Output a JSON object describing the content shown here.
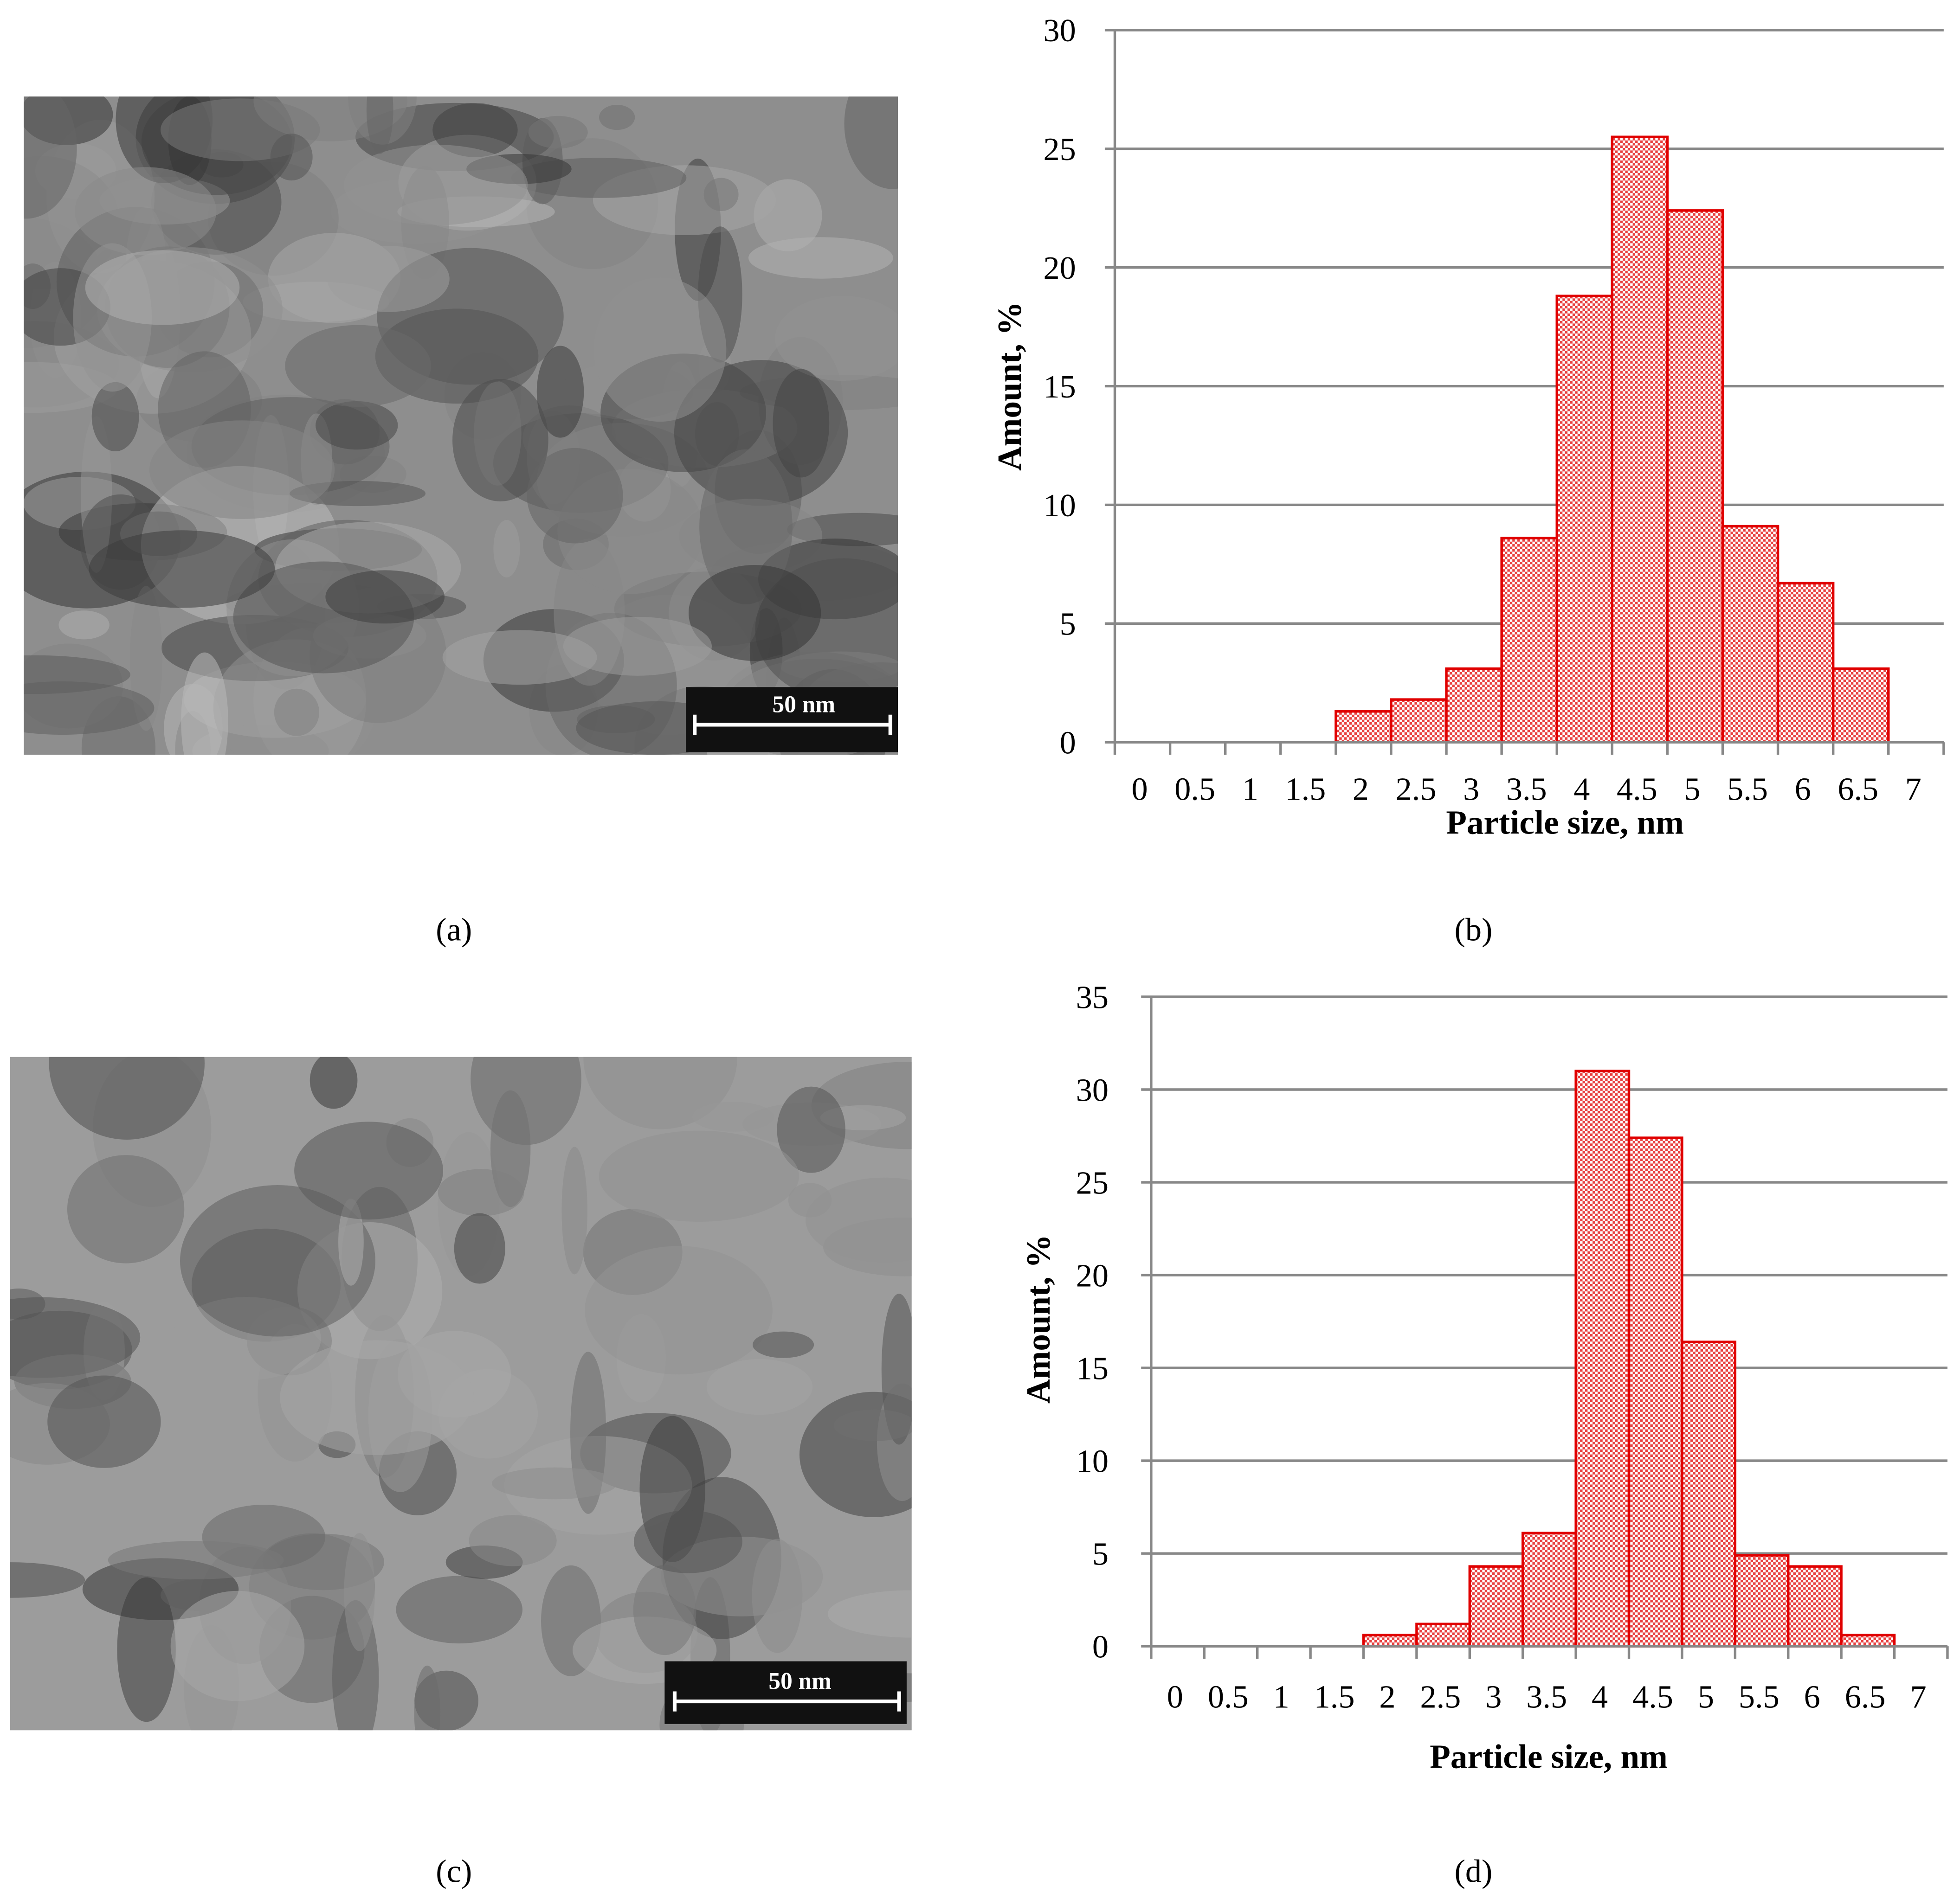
{
  "panels": [
    {
      "label": "(a)",
      "scale_bar": "50 nm"
    },
    {
      "label": "(b)"
    },
    {
      "label": "(c)",
      "scale_bar": "50 nm"
    },
    {
      "label": "(d)"
    }
  ],
  "chart_data": [
    {
      "type": "bar",
      "xlabel": "Particle size, nm",
      "ylabel": "Amount, %",
      "categories": [
        "0",
        "0.5",
        "1",
        "1.5",
        "2",
        "2.5",
        "3",
        "3.5",
        "4",
        "4.5",
        "5",
        "5.5",
        "6",
        "6.5",
        "7"
      ],
      "values": [
        0,
        0,
        0,
        0,
        1.3,
        1.8,
        3.1,
        8.6,
        18.8,
        25.5,
        22.4,
        9.1,
        6.7,
        3.1,
        0
      ],
      "color": "#e00000",
      "ylim": [
        0,
        30
      ],
      "yticks": [
        0,
        5,
        10,
        15,
        20,
        25,
        30
      ],
      "grid": true
    },
    {
      "type": "bar",
      "xlabel": "Particle size, nm",
      "ylabel": "Amount, %",
      "categories": [
        "0",
        "0.5",
        "1",
        "1.5",
        "2",
        "2.5",
        "3",
        "3.5",
        "4",
        "4.5",
        "5",
        "5.5",
        "6",
        "6.5",
        "7"
      ],
      "values": [
        0,
        0,
        0,
        0,
        0.6,
        1.2,
        4.3,
        6.1,
        31.0,
        27.4,
        16.4,
        4.9,
        4.3,
        0.6,
        0
      ],
      "color": "#e00000",
      "ylim": [
        0,
        35
      ],
      "yticks": [
        0,
        5,
        10,
        15,
        20,
        25,
        30,
        35
      ],
      "grid": true
    }
  ]
}
